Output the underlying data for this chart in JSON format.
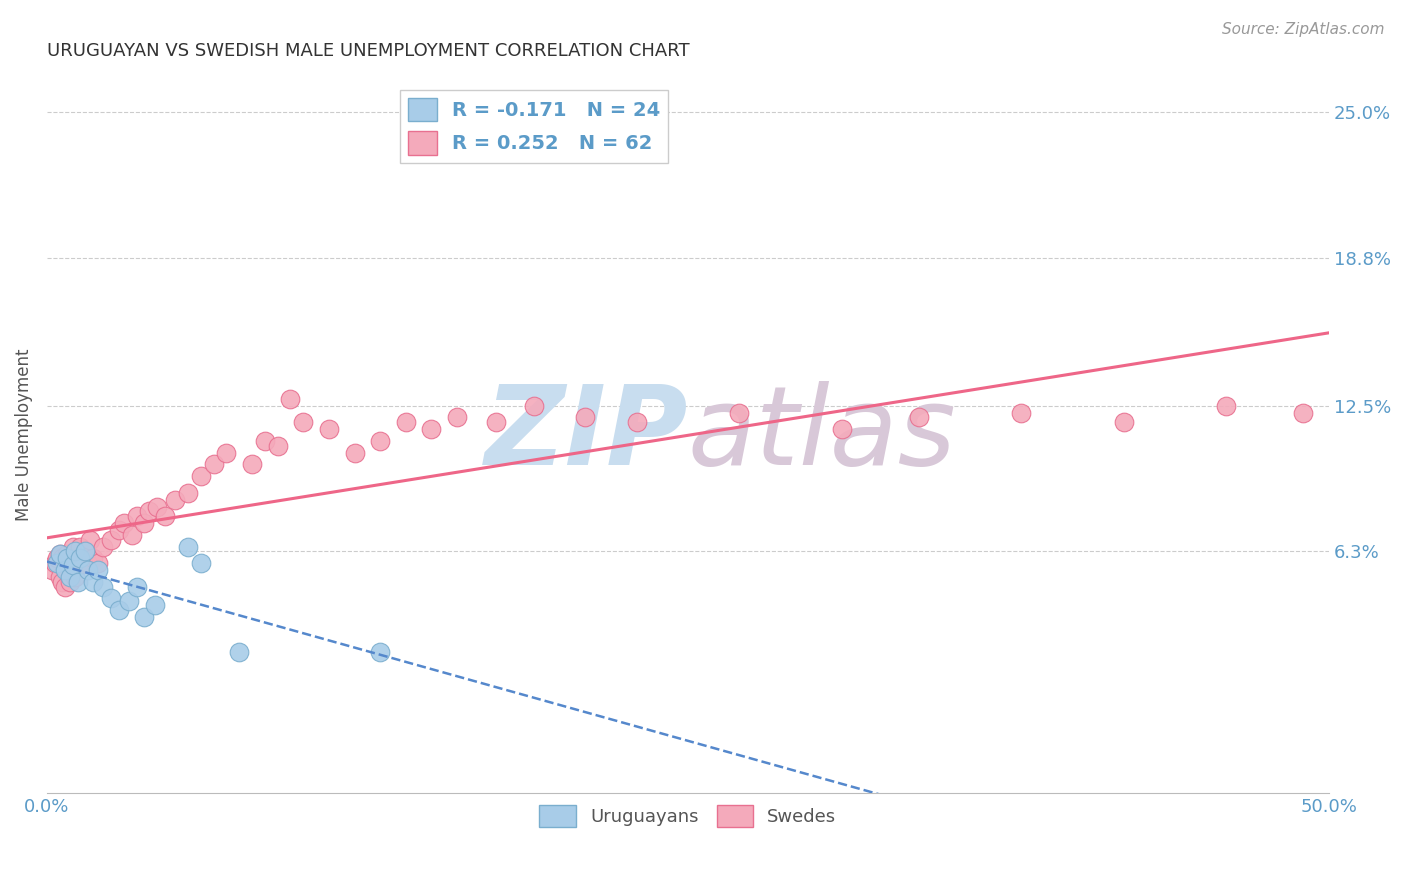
{
  "title": "URUGUAYAN VS SWEDISH MALE UNEMPLOYMENT CORRELATION CHART",
  "source": "Source: ZipAtlas.com",
  "ylabel": "Male Unemployment",
  "xlim": [
    0.0,
    0.5
  ],
  "ylim": [
    -0.04,
    0.265
  ],
  "yticks": [
    0.063,
    0.125,
    0.188,
    0.25
  ],
  "ytick_labels": [
    "6.3%",
    "12.5%",
    "18.8%",
    "25.0%"
  ],
  "xtick_labels": [
    "0.0%",
    "",
    "",
    "",
    "",
    "50.0%"
  ],
  "xticks": [
    0.0,
    0.1,
    0.2,
    0.3,
    0.4,
    0.5
  ],
  "uruguayan_color": "#A8CCE8",
  "swedish_color": "#F4AABB",
  "uruguayan_edge": "#7AAECE",
  "swedish_edge": "#E87090",
  "trend_uruguayan_color": "#5588CC",
  "trend_swedish_color": "#EE6688",
  "background_color": "#FFFFFF",
  "watermark_color": "#DDEEFF",
  "legend_r_uruguayan": "R = -0.171",
  "legend_n_uruguayan": "N = 24",
  "legend_r_swedish": "R = 0.252",
  "legend_n_swedish": "N = 62",
  "uruguayan_x": [
    0.004,
    0.005,
    0.007,
    0.008,
    0.009,
    0.01,
    0.011,
    0.012,
    0.013,
    0.015,
    0.016,
    0.018,
    0.02,
    0.022,
    0.025,
    0.028,
    0.032,
    0.035,
    0.038,
    0.042,
    0.055,
    0.06,
    0.075,
    0.13
  ],
  "uruguayan_y": [
    0.058,
    0.062,
    0.055,
    0.06,
    0.052,
    0.057,
    0.063,
    0.05,
    0.06,
    0.063,
    0.055,
    0.05,
    0.055,
    0.048,
    0.043,
    0.038,
    0.042,
    0.048,
    0.035,
    0.04,
    0.065,
    0.058,
    0.02,
    0.02
  ],
  "swedish_x": [
    0.002,
    0.003,
    0.004,
    0.005,
    0.005,
    0.006,
    0.006,
    0.007,
    0.007,
    0.008,
    0.008,
    0.009,
    0.009,
    0.01,
    0.01,
    0.011,
    0.011,
    0.012,
    0.013,
    0.014,
    0.015,
    0.016,
    0.017,
    0.018,
    0.02,
    0.022,
    0.025,
    0.028,
    0.03,
    0.033,
    0.035,
    0.038,
    0.04,
    0.043,
    0.046,
    0.05,
    0.055,
    0.06,
    0.065,
    0.07,
    0.08,
    0.085,
    0.09,
    0.095,
    0.1,
    0.11,
    0.12,
    0.13,
    0.14,
    0.15,
    0.16,
    0.175,
    0.19,
    0.21,
    0.23,
    0.27,
    0.31,
    0.34,
    0.38,
    0.42,
    0.46,
    0.49
  ],
  "swedish_y": [
    0.055,
    0.058,
    0.06,
    0.052,
    0.062,
    0.05,
    0.06,
    0.048,
    0.058,
    0.055,
    0.062,
    0.05,
    0.06,
    0.058,
    0.065,
    0.052,
    0.06,
    0.057,
    0.065,
    0.06,
    0.063,
    0.058,
    0.068,
    0.06,
    0.058,
    0.065,
    0.068,
    0.072,
    0.075,
    0.07,
    0.078,
    0.075,
    0.08,
    0.082,
    0.078,
    0.085,
    0.088,
    0.095,
    0.1,
    0.105,
    0.1,
    0.11,
    0.108,
    0.128,
    0.118,
    0.115,
    0.105,
    0.11,
    0.118,
    0.115,
    0.12,
    0.118,
    0.125,
    0.12,
    0.118,
    0.122,
    0.115,
    0.12,
    0.122,
    0.118,
    0.125,
    0.122
  ]
}
